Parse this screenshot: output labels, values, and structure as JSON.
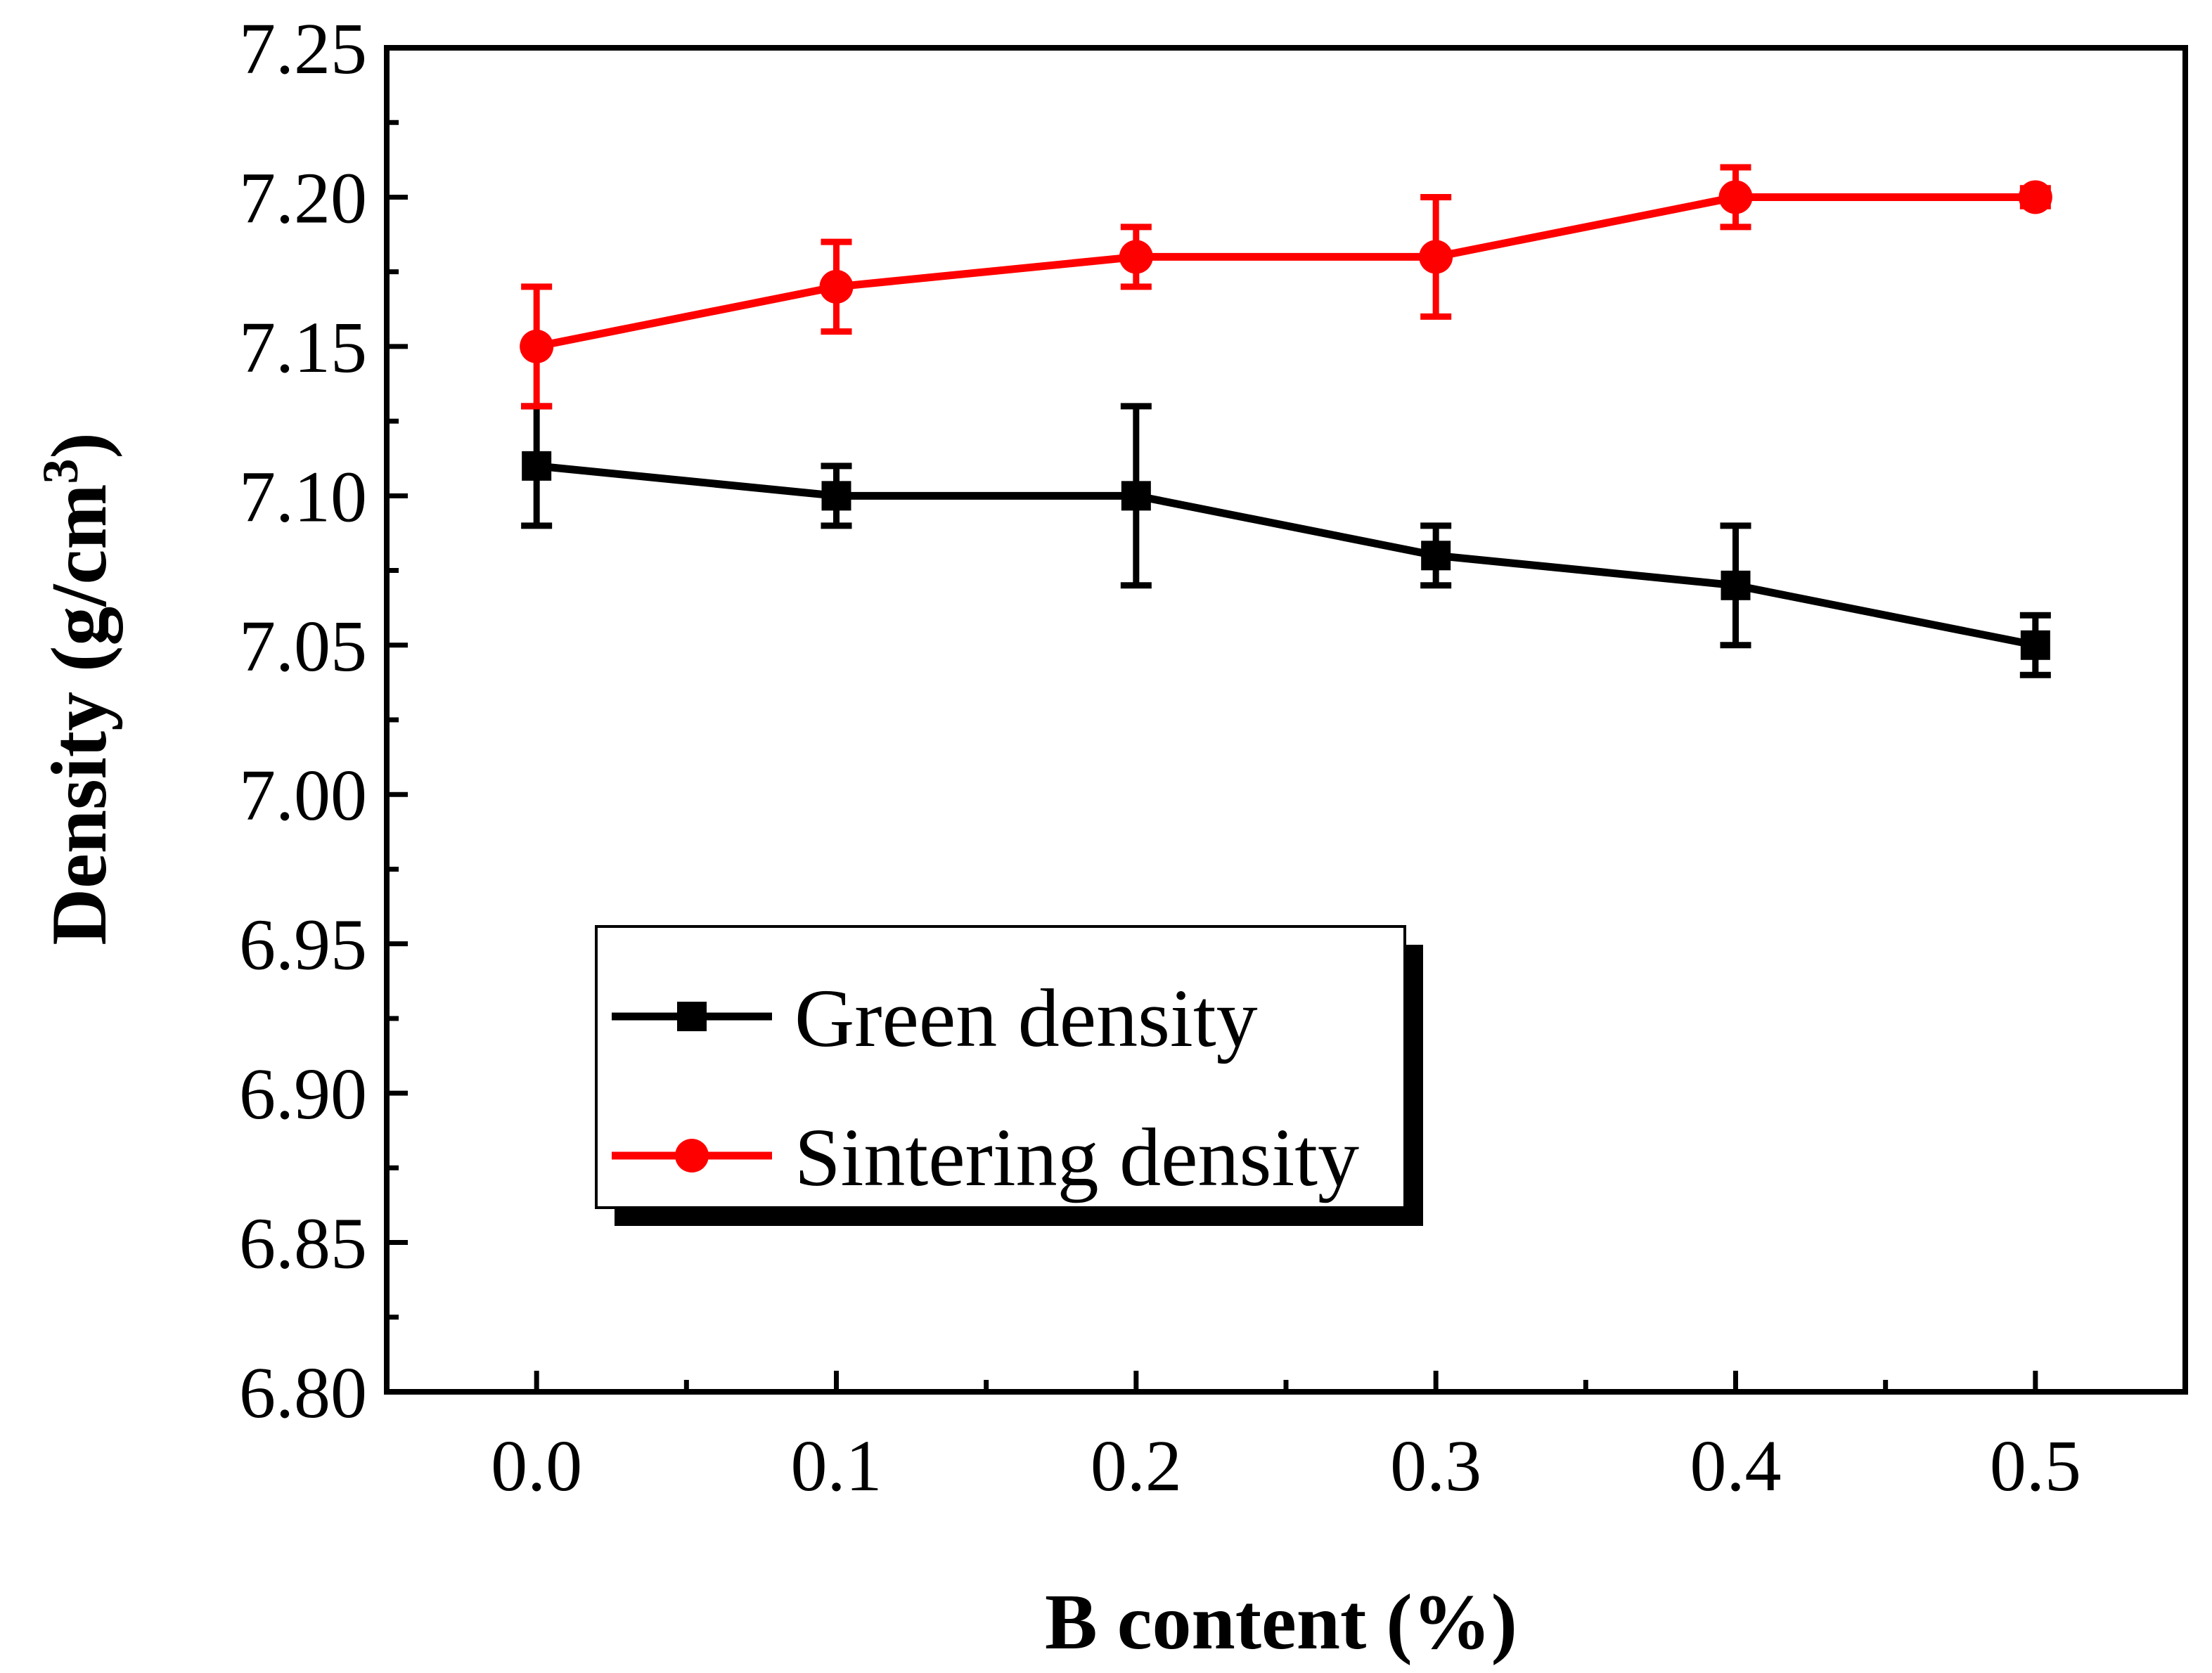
{
  "chart_data": {
    "type": "line",
    "title": "",
    "xlabel": "B content (%)",
    "ylabel": "Density (g/cm",
    "ylabel_superscript": "3",
    "ylabel_close": ")",
    "x": [
      0.0,
      0.1,
      0.2,
      0.3,
      0.4,
      0.5
    ],
    "xlim": [
      -0.05,
      0.55
    ],
    "ylim": [
      6.8,
      7.25
    ],
    "xticks": [
      0.0,
      0.1,
      0.2,
      0.3,
      0.4,
      0.5
    ],
    "xtick_labels": [
      "0.0",
      "0.1",
      "0.2",
      "0.3",
      "0.4",
      "0.5"
    ],
    "yticks": [
      6.8,
      6.85,
      6.9,
      6.95,
      7.0,
      7.05,
      7.1,
      7.15,
      7.2,
      7.25
    ],
    "ytick_labels": [
      "6.80",
      "6.85",
      "6.90",
      "6.95",
      "7.00",
      "7.05",
      "7.10",
      "7.15",
      "7.20",
      "7.25"
    ],
    "grid": false,
    "legend_position": "lower-center",
    "series": [
      {
        "name": "Green density",
        "color": "#000000",
        "marker": "square",
        "values": [
          7.11,
          7.1,
          7.1,
          7.08,
          7.07,
          7.05
        ],
        "err_low": [
          7.09,
          7.09,
          7.07,
          7.07,
          7.05,
          7.04
        ],
        "err_high": [
          7.13,
          7.11,
          7.13,
          7.09,
          7.09,
          7.06
        ]
      },
      {
        "name": "Sintering density",
        "color": "#ff0000",
        "marker": "circle",
        "values": [
          7.15,
          7.17,
          7.18,
          7.18,
          7.2,
          7.2
        ],
        "err_low": [
          7.13,
          7.155,
          7.17,
          7.16,
          7.19,
          7.197
        ],
        "err_high": [
          7.17,
          7.185,
          7.19,
          7.2,
          7.21,
          7.203
        ]
      }
    ]
  }
}
